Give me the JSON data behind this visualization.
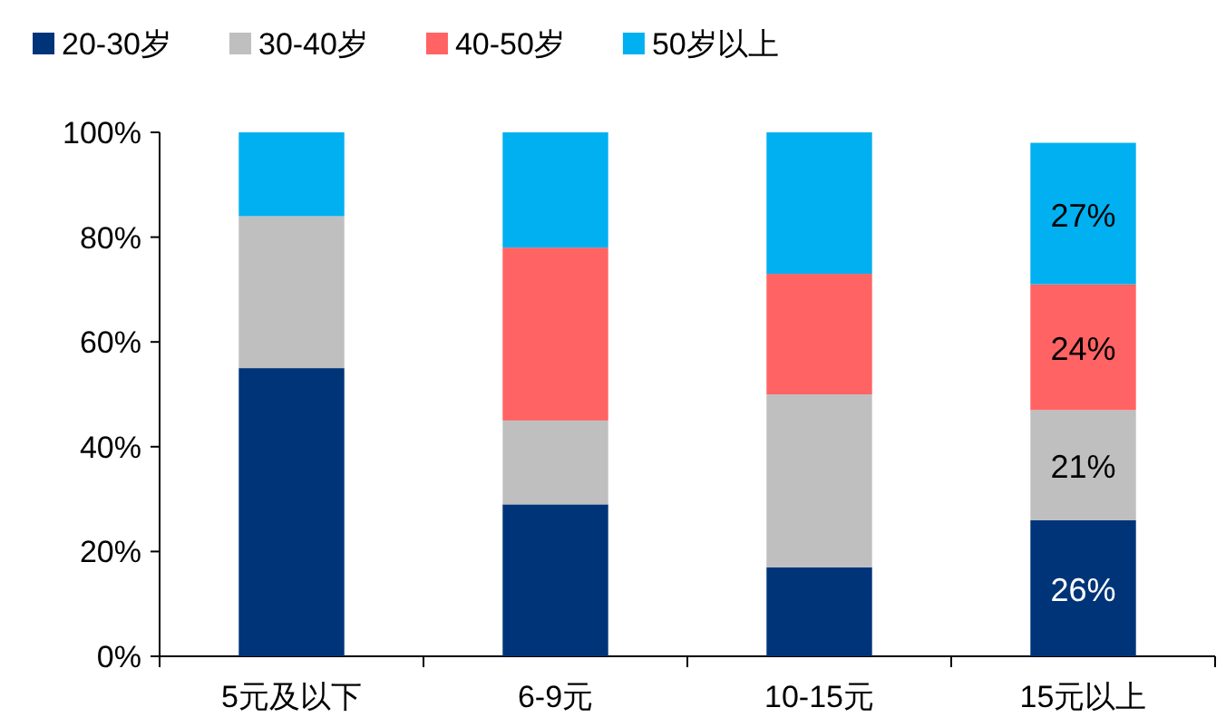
{
  "chart_data": {
    "type": "bar",
    "stacked": true,
    "categories": [
      "5元及以下",
      "6-9元",
      "10-15元",
      "15元以上"
    ],
    "series": [
      {
        "name": "20-30岁",
        "color": "#003478",
        "values": [
          55,
          29,
          17,
          26
        ],
        "value_labels": [
          null,
          null,
          null,
          "26%"
        ]
      },
      {
        "name": "30-40岁",
        "color": "#bfbfbf",
        "values": [
          29,
          16,
          33,
          21
        ],
        "value_labels": [
          null,
          null,
          null,
          "21%"
        ]
      },
      {
        "name": "40-50岁",
        "color": "#ff6363",
        "values": [
          0,
          33,
          23,
          24
        ],
        "value_labels": [
          null,
          null,
          null,
          "24%"
        ]
      },
      {
        "name": "50岁以上",
        "color": "#00b0f0",
        "values": [
          16,
          22,
          27,
          27
        ],
        "value_labels": [
          null,
          null,
          null,
          "27%"
        ]
      }
    ],
    "ylim": [
      0,
      100
    ],
    "yticks": [
      {
        "value": 0,
        "label": "0%"
      },
      {
        "value": 20,
        "label": "20%"
      },
      {
        "value": 40,
        "label": "40%"
      },
      {
        "value": 60,
        "label": "60%"
      },
      {
        "value": 80,
        "label": "80%"
      },
      {
        "value": 100,
        "label": "100%"
      }
    ],
    "legend": "top"
  }
}
